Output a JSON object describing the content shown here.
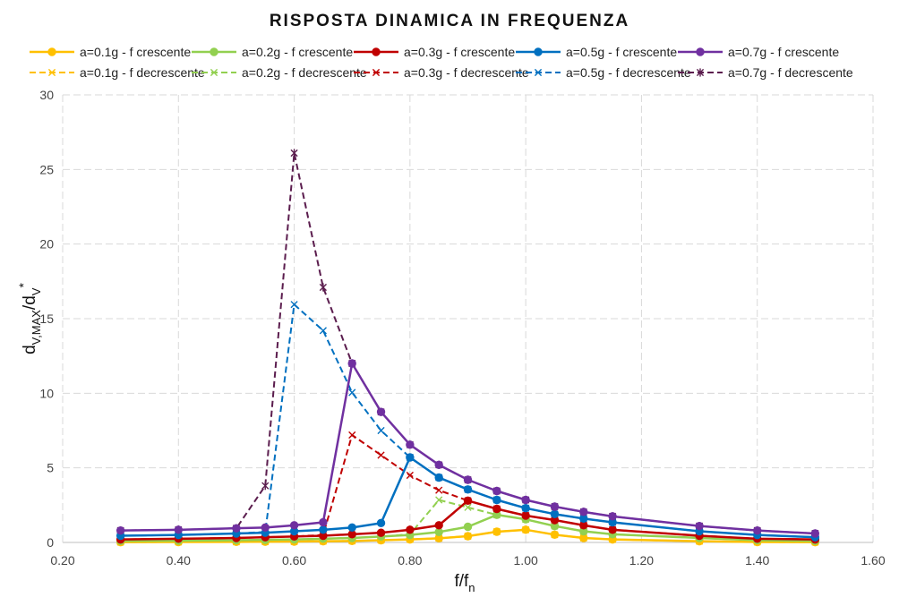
{
  "chart_data": {
    "type": "line",
    "title": "RISPOSTA DINAMICA IN FREQUENZA",
    "xlabel": {
      "main": "f/f",
      "sub": "n"
    },
    "ylabel": {
      "main": "d",
      "sub1": "V,MAX",
      "mid": "/d",
      "sub2": "V",
      "sup": "*"
    },
    "xlim": [
      0.2,
      1.6
    ],
    "ylim": [
      0,
      30
    ],
    "xticks": [
      "0.20",
      "0.40",
      "0.60",
      "0.80",
      "1.00",
      "1.20",
      "1.40",
      "1.60"
    ],
    "yticks": [
      "0",
      "5",
      "10",
      "15",
      "20",
      "25",
      "30"
    ],
    "grid": true,
    "legend_position": "top",
    "series": [
      {
        "name": "a=0.1g - f crescente",
        "color": "#FFC000",
        "style": "solid",
        "marker": "circle",
        "points": [
          [
            0.3,
            0.02
          ],
          [
            0.4,
            0.03
          ],
          [
            0.5,
            0.04
          ],
          [
            0.55,
            0.05
          ],
          [
            0.6,
            0.06
          ],
          [
            0.65,
            0.08
          ],
          [
            0.7,
            0.1
          ],
          [
            0.75,
            0.15
          ],
          [
            0.8,
            0.2
          ],
          [
            0.85,
            0.28
          ],
          [
            0.9,
            0.42
          ],
          [
            0.95,
            0.72
          ],
          [
            1.0,
            0.85
          ],
          [
            1.05,
            0.52
          ],
          [
            1.1,
            0.3
          ],
          [
            1.15,
            0.2
          ],
          [
            1.3,
            0.08
          ],
          [
            1.4,
            0.03
          ],
          [
            1.5,
            0.02
          ]
        ]
      },
      {
        "name": "a=0.2g - f crescente",
        "color": "#92D050",
        "style": "solid",
        "marker": "circle",
        "points": [
          [
            0.3,
            0.1
          ],
          [
            0.4,
            0.12
          ],
          [
            0.5,
            0.15
          ],
          [
            0.55,
            0.17
          ],
          [
            0.6,
            0.2
          ],
          [
            0.65,
            0.25
          ],
          [
            0.7,
            0.3
          ],
          [
            0.75,
            0.4
          ],
          [
            0.8,
            0.5
          ],
          [
            0.85,
            0.7
          ],
          [
            0.9,
            1.05
          ],
          [
            0.95,
            1.85
          ],
          [
            1.0,
            1.55
          ],
          [
            1.05,
            1.1
          ],
          [
            1.1,
            0.75
          ],
          [
            1.15,
            0.55
          ],
          [
            1.3,
            0.3
          ],
          [
            1.4,
            0.15
          ],
          [
            1.5,
            0.1
          ]
        ]
      },
      {
        "name": "a=0.3g - f crescente",
        "color": "#C00000",
        "style": "solid",
        "marker": "circle",
        "points": [
          [
            0.3,
            0.2
          ],
          [
            0.4,
            0.25
          ],
          [
            0.5,
            0.3
          ],
          [
            0.55,
            0.35
          ],
          [
            0.6,
            0.4
          ],
          [
            0.65,
            0.45
          ],
          [
            0.7,
            0.55
          ],
          [
            0.75,
            0.65
          ],
          [
            0.8,
            0.85
          ],
          [
            0.85,
            1.15
          ],
          [
            0.9,
            2.8
          ],
          [
            0.95,
            2.25
          ],
          [
            1.0,
            1.8
          ],
          [
            1.05,
            1.5
          ],
          [
            1.1,
            1.15
          ],
          [
            1.15,
            0.85
          ],
          [
            1.3,
            0.45
          ],
          [
            1.4,
            0.25
          ],
          [
            1.5,
            0.2
          ]
        ]
      },
      {
        "name": "a=0.5g - f crescente",
        "color": "#0070C0",
        "style": "solid",
        "marker": "circle",
        "points": [
          [
            0.3,
            0.45
          ],
          [
            0.4,
            0.5
          ],
          [
            0.5,
            0.6
          ],
          [
            0.55,
            0.65
          ],
          [
            0.6,
            0.75
          ],
          [
            0.65,
            0.85
          ],
          [
            0.7,
            1.0
          ],
          [
            0.75,
            1.3
          ],
          [
            0.8,
            5.7
          ],
          [
            0.85,
            4.35
          ],
          [
            0.9,
            3.55
          ],
          [
            0.95,
            2.85
          ],
          [
            1.0,
            2.3
          ],
          [
            1.05,
            1.9
          ],
          [
            1.1,
            1.6
          ],
          [
            1.15,
            1.35
          ],
          [
            1.3,
            0.75
          ],
          [
            1.4,
            0.5
          ],
          [
            1.5,
            0.35
          ]
        ]
      },
      {
        "name": "a=0.7g - f crescente",
        "color": "#7030A0",
        "style": "solid",
        "marker": "circle",
        "points": [
          [
            0.3,
            0.8
          ],
          [
            0.4,
            0.85
          ],
          [
            0.5,
            0.95
          ],
          [
            0.55,
            1.0
          ],
          [
            0.6,
            1.15
          ],
          [
            0.65,
            1.35
          ],
          [
            0.7,
            12.0
          ],
          [
            0.75,
            8.75
          ],
          [
            0.8,
            6.55
          ],
          [
            0.85,
            5.2
          ],
          [
            0.9,
            4.2
          ],
          [
            0.95,
            3.45
          ],
          [
            1.0,
            2.85
          ],
          [
            1.05,
            2.4
          ],
          [
            1.1,
            2.05
          ],
          [
            1.15,
            1.75
          ],
          [
            1.3,
            1.1
          ],
          [
            1.4,
            0.8
          ],
          [
            1.5,
            0.6
          ]
        ]
      },
      {
        "name": "a=0.1g - f decrescente",
        "color": "#FFC000",
        "style": "dashed",
        "marker": "x",
        "points": [
          [
            0.3,
            0.02
          ],
          [
            0.4,
            0.03
          ],
          [
            0.5,
            0.04
          ],
          [
            0.55,
            0.05
          ],
          [
            0.6,
            0.06
          ],
          [
            0.65,
            0.08
          ],
          [
            0.7,
            0.1
          ],
          [
            0.75,
            0.15
          ],
          [
            0.8,
            0.2
          ],
          [
            0.85,
            0.28
          ],
          [
            0.9,
            0.42
          ],
          [
            0.95,
            0.72
          ],
          [
            1.0,
            0.85
          ],
          [
            1.05,
            0.52
          ],
          [
            1.1,
            0.3
          ],
          [
            1.15,
            0.2
          ],
          [
            1.3,
            0.08
          ],
          [
            1.4,
            0.03
          ],
          [
            1.5,
            0.02
          ]
        ]
      },
      {
        "name": "a=0.2g - f decrescente",
        "color": "#92D050",
        "style": "dashed",
        "marker": "x",
        "points": [
          [
            0.3,
            0.1
          ],
          [
            0.4,
            0.12
          ],
          [
            0.5,
            0.15
          ],
          [
            0.55,
            0.17
          ],
          [
            0.6,
            0.2
          ],
          [
            0.65,
            0.25
          ],
          [
            0.7,
            0.3
          ],
          [
            0.75,
            0.4
          ],
          [
            0.8,
            0.55
          ],
          [
            0.85,
            2.85
          ],
          [
            0.9,
            2.35
          ],
          [
            0.95,
            1.85
          ],
          [
            1.0,
            1.55
          ],
          [
            1.05,
            1.1
          ],
          [
            1.1,
            0.75
          ],
          [
            1.15,
            0.55
          ],
          [
            1.3,
            0.3
          ],
          [
            1.4,
            0.15
          ],
          [
            1.5,
            0.1
          ]
        ]
      },
      {
        "name": "a=0.3g - f decrescente",
        "color": "#C00000",
        "style": "dashed",
        "marker": "x",
        "points": [
          [
            0.3,
            0.2
          ],
          [
            0.4,
            0.25
          ],
          [
            0.5,
            0.3
          ],
          [
            0.55,
            0.35
          ],
          [
            0.6,
            0.4
          ],
          [
            0.65,
            0.5
          ],
          [
            0.7,
            7.2
          ],
          [
            0.75,
            5.85
          ],
          [
            0.8,
            4.5
          ],
          [
            0.85,
            3.5
          ],
          [
            0.9,
            2.8
          ],
          [
            0.95,
            2.25
          ],
          [
            1.0,
            1.8
          ],
          [
            1.05,
            1.5
          ],
          [
            1.1,
            1.15
          ],
          [
            1.15,
            0.85
          ],
          [
            1.3,
            0.45
          ],
          [
            1.4,
            0.25
          ],
          [
            1.5,
            0.2
          ]
        ]
      },
      {
        "name": "a=0.5g - f decrescente",
        "color": "#0070C0",
        "style": "dashed",
        "marker": "x",
        "points": [
          [
            0.3,
            0.45
          ],
          [
            0.4,
            0.5
          ],
          [
            0.5,
            0.6
          ],
          [
            0.55,
            0.7
          ],
          [
            0.6,
            15.95
          ],
          [
            0.65,
            14.2
          ],
          [
            0.7,
            10.05
          ],
          [
            0.75,
            7.5
          ],
          [
            0.8,
            5.7
          ],
          [
            0.85,
            4.35
          ],
          [
            0.9,
            3.55
          ],
          [
            0.95,
            2.85
          ],
          [
            1.0,
            2.3
          ],
          [
            1.05,
            1.9
          ],
          [
            1.1,
            1.6
          ],
          [
            1.15,
            1.35
          ],
          [
            1.3,
            0.75
          ],
          [
            1.4,
            0.5
          ],
          [
            1.5,
            0.35
          ]
        ]
      },
      {
        "name": "a=0.7g - f decrescente",
        "color": "#5B1D4E",
        "style": "dashed",
        "marker": "star",
        "points": [
          [
            0.3,
            0.8
          ],
          [
            0.4,
            0.85
          ],
          [
            0.5,
            0.95
          ],
          [
            0.55,
            3.8
          ],
          [
            0.6,
            26.1
          ],
          [
            0.65,
            17.1
          ],
          [
            0.7,
            12.0
          ],
          [
            0.75,
            8.75
          ],
          [
            0.8,
            6.55
          ],
          [
            0.85,
            5.2
          ],
          [
            0.9,
            4.2
          ],
          [
            0.95,
            3.45
          ],
          [
            1.0,
            2.85
          ],
          [
            1.05,
            2.4
          ],
          [
            1.1,
            2.05
          ],
          [
            1.15,
            1.75
          ],
          [
            1.3,
            1.1
          ],
          [
            1.4,
            0.8
          ],
          [
            1.5,
            0.6
          ]
        ]
      }
    ]
  }
}
